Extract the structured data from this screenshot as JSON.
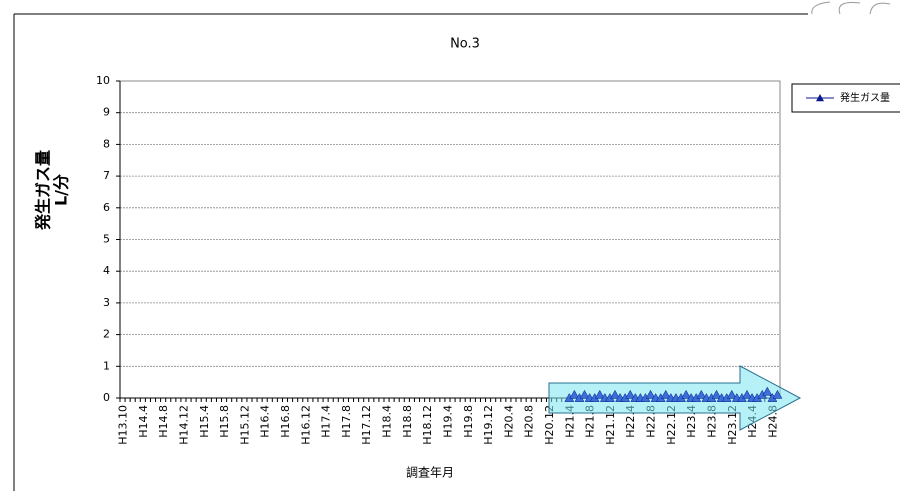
{
  "chart_data": {
    "type": "line",
    "title": "No.3",
    "y_label": [
      "発生ガス量",
      "L/分"
    ],
    "x_label": "調査年月",
    "categories": [
      "H13.10",
      null,
      null,
      null,
      "H14.4",
      null,
      null,
      null,
      "H14.8",
      null,
      null,
      null,
      "H14.12",
      null,
      null,
      null,
      "H15.4",
      null,
      null,
      null,
      "H15.8",
      null,
      null,
      null,
      "H15.12",
      null,
      null,
      null,
      "H16.4",
      null,
      null,
      null,
      "H16.8",
      null,
      null,
      null,
      "H16.12",
      null,
      null,
      null,
      "H17.4",
      null,
      null,
      null,
      "H17.8",
      null,
      null,
      null,
      "H17.12",
      null,
      null,
      null,
      "H18.4",
      null,
      null,
      null,
      "H18.8",
      null,
      null,
      null,
      "H18.12",
      null,
      null,
      null,
      "H19.4",
      null,
      null,
      null,
      "H19.8",
      null,
      null,
      null,
      "H19.12",
      null,
      null,
      null,
      "H20.4",
      null,
      null,
      null,
      "H20.8",
      null,
      null,
      null,
      "H20.12",
      null,
      null,
      null,
      "H21.4",
      null,
      null,
      null,
      "H21.8",
      null,
      null,
      null,
      "H21.12",
      null,
      null,
      null,
      "H22.4",
      null,
      null,
      null,
      "H22.8",
      null,
      null,
      null,
      "H22.12",
      null,
      null,
      null,
      "H23.4",
      null,
      null,
      null,
      "H23.8",
      null,
      null,
      null,
      "H23.12",
      null,
      null,
      null,
      "H24.4",
      null,
      null,
      null,
      "H24.8",
      null
    ],
    "series": [
      {
        "name": "発生ガス量",
        "color": "#0a1a8c",
        "values": [
          null,
          null,
          null,
          null,
          null,
          null,
          null,
          null,
          null,
          null,
          null,
          null,
          null,
          null,
          null,
          null,
          null,
          null,
          null,
          null,
          null,
          null,
          null,
          null,
          null,
          null,
          null,
          null,
          null,
          null,
          null,
          null,
          null,
          null,
          null,
          null,
          null,
          null,
          null,
          null,
          null,
          null,
          null,
          null,
          null,
          null,
          null,
          null,
          null,
          null,
          null,
          null,
          null,
          null,
          null,
          null,
          null,
          null,
          null,
          null,
          null,
          null,
          null,
          null,
          null,
          null,
          null,
          null,
          null,
          null,
          null,
          null,
          null,
          null,
          null,
          null,
          null,
          null,
          null,
          null,
          null,
          null,
          null,
          null,
          null,
          null,
          null,
          null,
          0,
          0.1,
          0,
          0.1,
          0,
          0,
          0.1,
          0,
          0,
          0.1,
          0,
          0,
          0.1,
          0,
          0,
          0,
          0.1,
          0,
          0,
          0.1,
          0,
          0,
          0,
          0.1,
          0,
          0,
          0.1,
          0,
          0,
          0.1,
          0,
          0,
          0.1,
          0,
          0,
          0.1,
          0,
          0,
          0.1,
          0.2,
          0,
          0.1
        ]
      }
    ],
    "ylim": [
      0,
      10
    ],
    "yticks": [
      0,
      1,
      2,
      3,
      4,
      5,
      6,
      7,
      8,
      9,
      10
    ],
    "grid": true,
    "legend": "right"
  }
}
